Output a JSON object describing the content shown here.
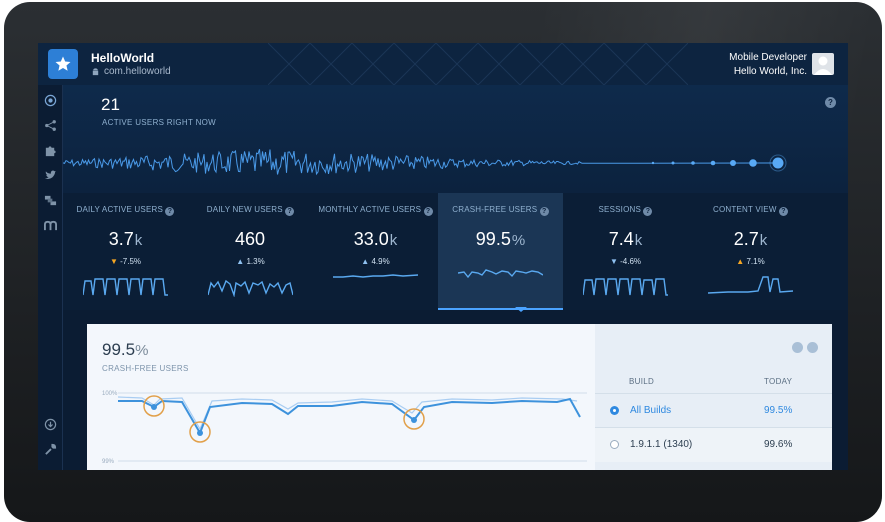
{
  "header": {
    "app_name": "HelloWorld",
    "package": "com.helloworld",
    "user_role": "Mobile Developer",
    "user_org": "Hello World, Inc."
  },
  "sidebar": {
    "items": [
      {
        "icon": "radio-icon"
      },
      {
        "icon": "share-icon"
      },
      {
        "icon": "puzzle-icon"
      },
      {
        "icon": "twitter-icon"
      },
      {
        "icon": "fabric-icon"
      },
      {
        "icon": "mopub-icon"
      },
      {
        "icon": "download-icon"
      },
      {
        "icon": "wrench-icon"
      }
    ]
  },
  "realtime": {
    "count": "21",
    "label": "ACTIVE USERS RIGHT NOW"
  },
  "metrics": [
    {
      "label": "DAILY ACTIVE USERS",
      "value": "3.7",
      "unit": "k",
      "delta": "-7.5%",
      "direction": "down",
      "delta_color": "#f5a623"
    },
    {
      "label": "DAILY NEW USERS",
      "value": "460",
      "unit": "",
      "delta": "1.3%",
      "direction": "up",
      "delta_color": "#8fc1f0"
    },
    {
      "label": "MONTHLY ACTIVE USERS",
      "value": "33.0",
      "unit": "k",
      "delta": "4.9%",
      "direction": "up",
      "delta_color": "#8fc1f0"
    },
    {
      "label": "CRASH-FREE USERS",
      "value": "99.5",
      "unit": "%",
      "delta": "",
      "direction": "",
      "delta_color": "#8fc1f0",
      "selected": true
    },
    {
      "label": "SESSIONS",
      "value": "7.4",
      "unit": "k",
      "delta": "-4.6%",
      "direction": "down",
      "delta_color": "#8fc1f0"
    },
    {
      "label": "CONTENT VIEW",
      "value": "2.7",
      "unit": "k",
      "delta": "7.1%",
      "direction": "up",
      "delta_color": "#f5a623"
    }
  ],
  "detail": {
    "value": "99.5",
    "unit": "%",
    "label": "CRASH-FREE USERS",
    "ytick_top": "100%",
    "ytick_bottom": "99%",
    "table": {
      "col_build": "BUILD",
      "col_today": "TODAY",
      "rows": [
        {
          "build": "All Builds",
          "today": "99.5%",
          "selected": true
        },
        {
          "build": "1.9.1.1 (1340)",
          "today": "99.6%",
          "selected": false
        }
      ]
    }
  },
  "colors": {
    "accent": "#4ba3ff",
    "warning": "#f5a623",
    "background": "#0b1c33"
  }
}
